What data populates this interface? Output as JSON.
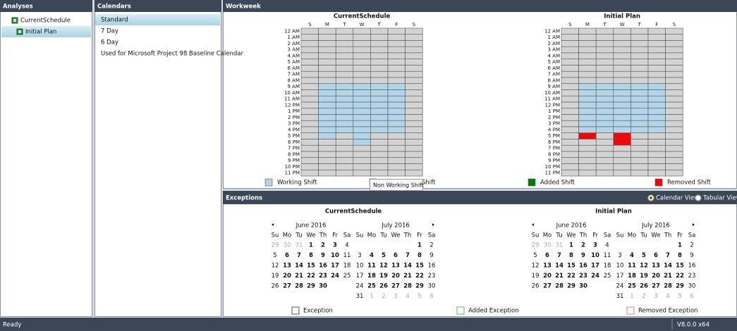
{
  "analyses": {
    "title": "Analyses",
    "items": [
      "CurrentSchedule",
      "Initial Plan"
    ],
    "selected": 1
  },
  "calendars": {
    "title": "Calendars",
    "items": [
      "Standard",
      "7 Day",
      "6 Day",
      "Used for Microsoft Project 98 Baseline Calendar"
    ],
    "selected": 0
  },
  "workweek": {
    "title": "Workweek",
    "days": [
      "S",
      "M",
      "T",
      "W",
      "T",
      "F",
      "S"
    ],
    "hours": [
      "12 AM",
      "1 AM",
      "2 AM",
      "3 AM",
      "4 AM",
      "5 AM",
      "6 AM",
      "7 AM",
      "8 AM",
      "9 AM",
      "10 AM",
      "11 AM",
      "12 PM",
      "1 PM",
      "2 PM",
      "3 PM",
      "4 PM",
      "5 PM",
      "6 PM",
      "7 PM",
      "8 PM",
      "9 PM",
      "10 PM",
      "11 PM"
    ],
    "legend": [
      {
        "label": "Working Shift",
        "color": "#b3d5ea"
      },
      {
        "label": "Non Working Shift",
        "color": "#d3d3d3"
      },
      {
        "label": "Added Shift",
        "color": "#008000"
      },
      {
        "label": "Removed Shift",
        "color": "#ff0000"
      }
    ],
    "grids": [
      {
        "title": "CurrentSchedule",
        "rows": [
          "1111111",
          "1111111",
          "1111111",
          "1111111",
          "1111111",
          "1111111",
          "1111111",
          "1111111",
          "1111111",
          "1000001",
          "1000001",
          "1000001",
          "1000001",
          "1000001",
          "1000001",
          "1000001",
          "1000001",
          "1010111",
          "1110111",
          "1111111",
          "1111111",
          "1111111",
          "1111111",
          "1111111"
        ]
      },
      {
        "title": "Initial Plan",
        "rows": [
          "1111111",
          "1111111",
          "1111111",
          "1111111",
          "1111111",
          "1111111",
          "1111111",
          "1111111",
          "1111111",
          "1000001",
          "1000001",
          "1000001",
          "1000001",
          "1000001",
          "1000001",
          "1000001",
          "1000001",
          "1313111",
          "1113111",
          "1111111",
          "1111111",
          "1111111",
          "1111111",
          "1111111"
        ]
      }
    ],
    "tooltip": "Non Working Shift"
  },
  "exceptions": {
    "title": "Exceptions",
    "views": [
      "Calendar View",
      "Tabular View"
    ],
    "selected_view": 0,
    "weekdays": [
      "Su",
      "Mo",
      "Tu",
      "We",
      "Th",
      "Fr",
      "Sa"
    ],
    "groups": [
      {
        "title": "CurrentSchedule",
        "months": [
          {
            "title": "June 2016",
            "weeks": [
              [
                29,
                30,
                31,
                1,
                2,
                3,
                4
              ],
              [
                5,
                6,
                7,
                8,
                9,
                10,
                11
              ],
              [
                12,
                13,
                14,
                15,
                16,
                17,
                18
              ],
              [
                19,
                20,
                21,
                22,
                23,
                24,
                25
              ],
              [
                26,
                27,
                28,
                29,
                30,
                null,
                null
              ]
            ]
          },
          {
            "title": "July 2016",
            "weeks": [
              [
                null,
                null,
                null,
                null,
                null,
                1,
                2
              ],
              [
                3,
                4,
                5,
                6,
                7,
                8,
                9
              ],
              [
                10,
                11,
                12,
                13,
                14,
                15,
                16
              ],
              [
                17,
                18,
                19,
                20,
                21,
                22,
                23
              ],
              [
                24,
                25,
                26,
                27,
                28,
                29,
                30
              ],
              [
                31,
                1,
                2,
                3,
                4,
                5,
                6
              ]
            ]
          }
        ]
      },
      {
        "title": "Initial Plan",
        "months": [
          {
            "title": "June 2016",
            "weeks": [
              [
                29,
                30,
                31,
                1,
                2,
                3,
                4
              ],
              [
                5,
                6,
                7,
                8,
                9,
                10,
                11
              ],
              [
                12,
                13,
                14,
                15,
                16,
                17,
                18
              ],
              [
                19,
                20,
                21,
                22,
                23,
                24,
                25
              ],
              [
                26,
                27,
                28,
                29,
                30,
                null,
                null
              ]
            ]
          },
          {
            "title": "July 2016",
            "weeks": [
              [
                null,
                null,
                null,
                null,
                null,
                1,
                2
              ],
              [
                3,
                4,
                5,
                6,
                7,
                8,
                9
              ],
              [
                10,
                11,
                12,
                13,
                14,
                15,
                16
              ],
              [
                17,
                18,
                19,
                20,
                21,
                22,
                23
              ],
              [
                24,
                25,
                26,
                27,
                28,
                29,
                30
              ],
              [
                31,
                1,
                2,
                3,
                4,
                5,
                6
              ]
            ]
          }
        ]
      }
    ],
    "legend": [
      {
        "label": "Exception",
        "color": "#555555"
      },
      {
        "label": "Added Exception",
        "color": "#5cb85c"
      },
      {
        "label": "Removed Exception",
        "color": "#e08080"
      }
    ]
  },
  "status": {
    "left": "Ready",
    "right": "V8.0.0 x64"
  }
}
